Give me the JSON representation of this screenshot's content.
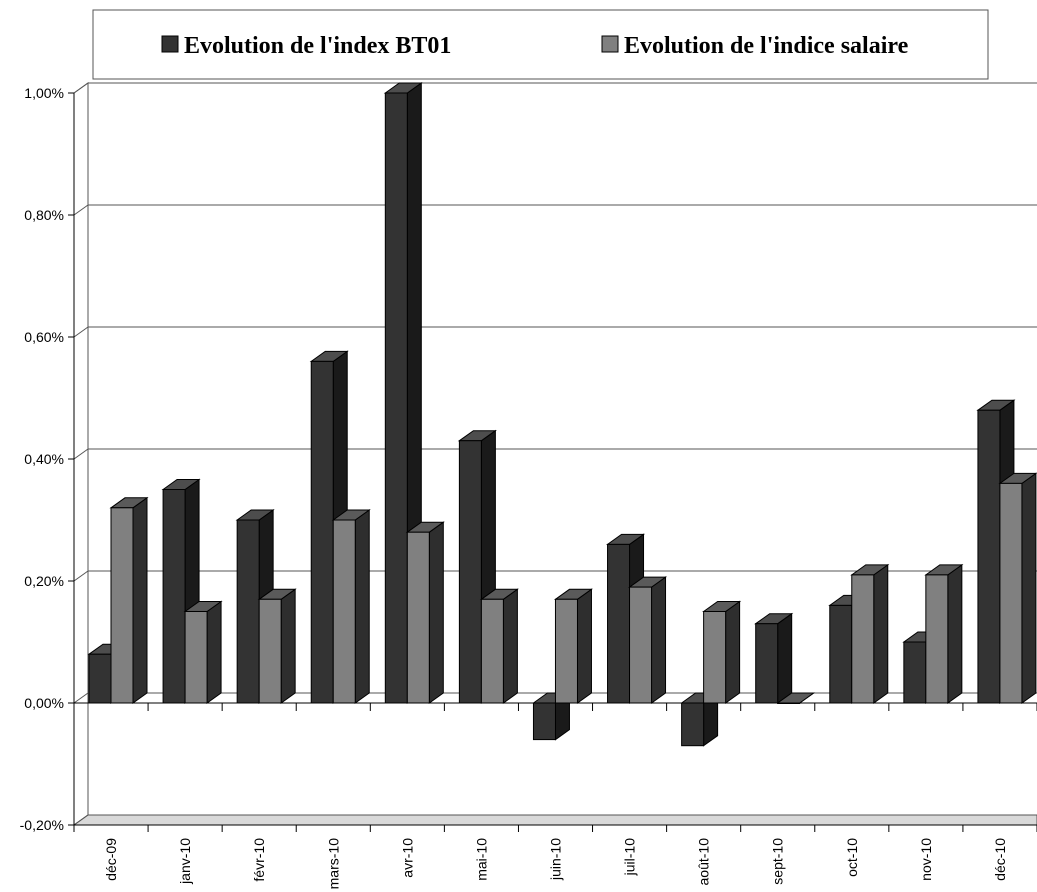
{
  "chart_data": {
    "type": "bar",
    "categories": [
      "déc-09",
      "janv-10",
      "févr-10",
      "mars-10",
      "avr-10",
      "mai-10",
      "juin-10",
      "juil-10",
      "août-10",
      "sept-10",
      "oct-10",
      "nov-10",
      "déc-10"
    ],
    "series": [
      {
        "name": "Evolution de l'index BT01",
        "color": "#333333",
        "values": [
          0.08,
          0.35,
          0.3,
          0.56,
          1.0,
          0.43,
          -0.06,
          0.26,
          -0.07,
          0.13,
          0.16,
          0.1,
          0.48
        ]
      },
      {
        "name": "Evolution de l'indice salaire",
        "color": "#808080",
        "values": [
          0.32,
          0.15,
          0.17,
          0.3,
          0.28,
          0.17,
          0.17,
          0.19,
          0.15,
          0.0,
          0.21,
          0.21,
          0.36
        ]
      }
    ],
    "y_ticks": [
      "-0,20%",
      "0,00%",
      "0,20%",
      "0,40%",
      "0,60%",
      "0,80%",
      "1,00%"
    ],
    "ylim": [
      -0.2,
      1.0
    ],
    "grid": true,
    "legend_position": "top",
    "bar_style": "3d"
  }
}
